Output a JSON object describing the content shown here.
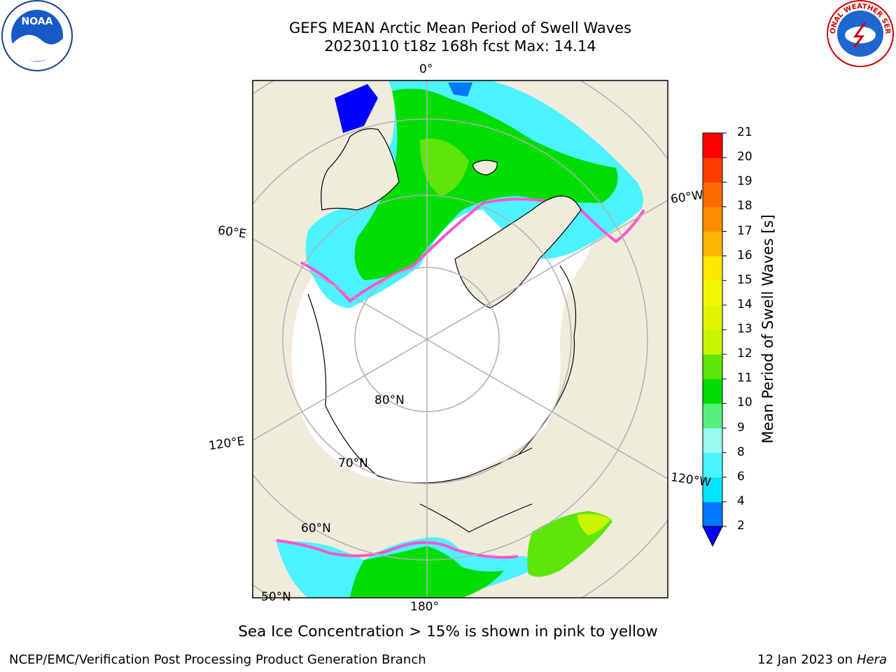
{
  "header": {
    "title_line1": "GEFS MEAN Arctic Mean Period of Swell Waves",
    "title_line2": "20230110 t18z 168h fcst   Max: 14.14"
  },
  "logos": {
    "left": "NOAA",
    "right": "NATIONAL WEATHER SERVICE"
  },
  "map": {
    "projection": "north polar stereographic",
    "longitude_labels": [
      "0°",
      "60°E",
      "120°E",
      "180°",
      "120°W",
      "60°W"
    ],
    "latitude_labels": [
      "80°N",
      "70°N",
      "60°N",
      "50°N"
    ],
    "colors": {
      "land": "#efecdc",
      "ocean_no_data": "#ffffff",
      "graticule": "#b0b0b0"
    }
  },
  "colorbar": {
    "label": "Mean Period of Swell Waves [s]",
    "ticks": [
      "2",
      "4",
      "6",
      "8",
      "9",
      "10",
      "11",
      "12",
      "13",
      "14",
      "15",
      "16",
      "17",
      "18",
      "19",
      "20",
      "21"
    ],
    "bins": [
      {
        "from": 2,
        "to": 4,
        "color": "#0077ff"
      },
      {
        "from": 4,
        "to": 6,
        "color": "#00e5ff"
      },
      {
        "from": 6,
        "to": 8,
        "color": "#4cf2ff"
      },
      {
        "from": 8,
        "to": 9,
        "color": "#9afcf0"
      },
      {
        "from": 9,
        "to": 10,
        "color": "#55f07a"
      },
      {
        "from": 10,
        "to": 11,
        "color": "#00dd00"
      },
      {
        "from": 11,
        "to": 12,
        "color": "#5ee60a"
      },
      {
        "from": 12,
        "to": 13,
        "color": "#c8f500"
      },
      {
        "from": 13,
        "to": 14,
        "color": "#e0f500"
      },
      {
        "from": 14,
        "to": 15,
        "color": "#f3f700"
      },
      {
        "from": 15,
        "to": 16,
        "color": "#ffe800"
      },
      {
        "from": 16,
        "to": 17,
        "color": "#ffb600"
      },
      {
        "from": 17,
        "to": 18,
        "color": "#ff8c00"
      },
      {
        "from": 18,
        "to": 19,
        "color": "#ff6a00"
      },
      {
        "from": 19,
        "to": 20,
        "color": "#ff3c00"
      },
      {
        "from": 20,
        "to": 21,
        "color": "#ff0000"
      }
    ],
    "under_color": "#0000ff"
  },
  "note": "Sea Ice Concentration > 15% is shown in pink to yellow",
  "footer": {
    "left": "NCEP/EMC/Verification Post Processing Product Generation Branch",
    "right_date": "12 Jan 2023 on",
    "right_host": "Hera"
  }
}
